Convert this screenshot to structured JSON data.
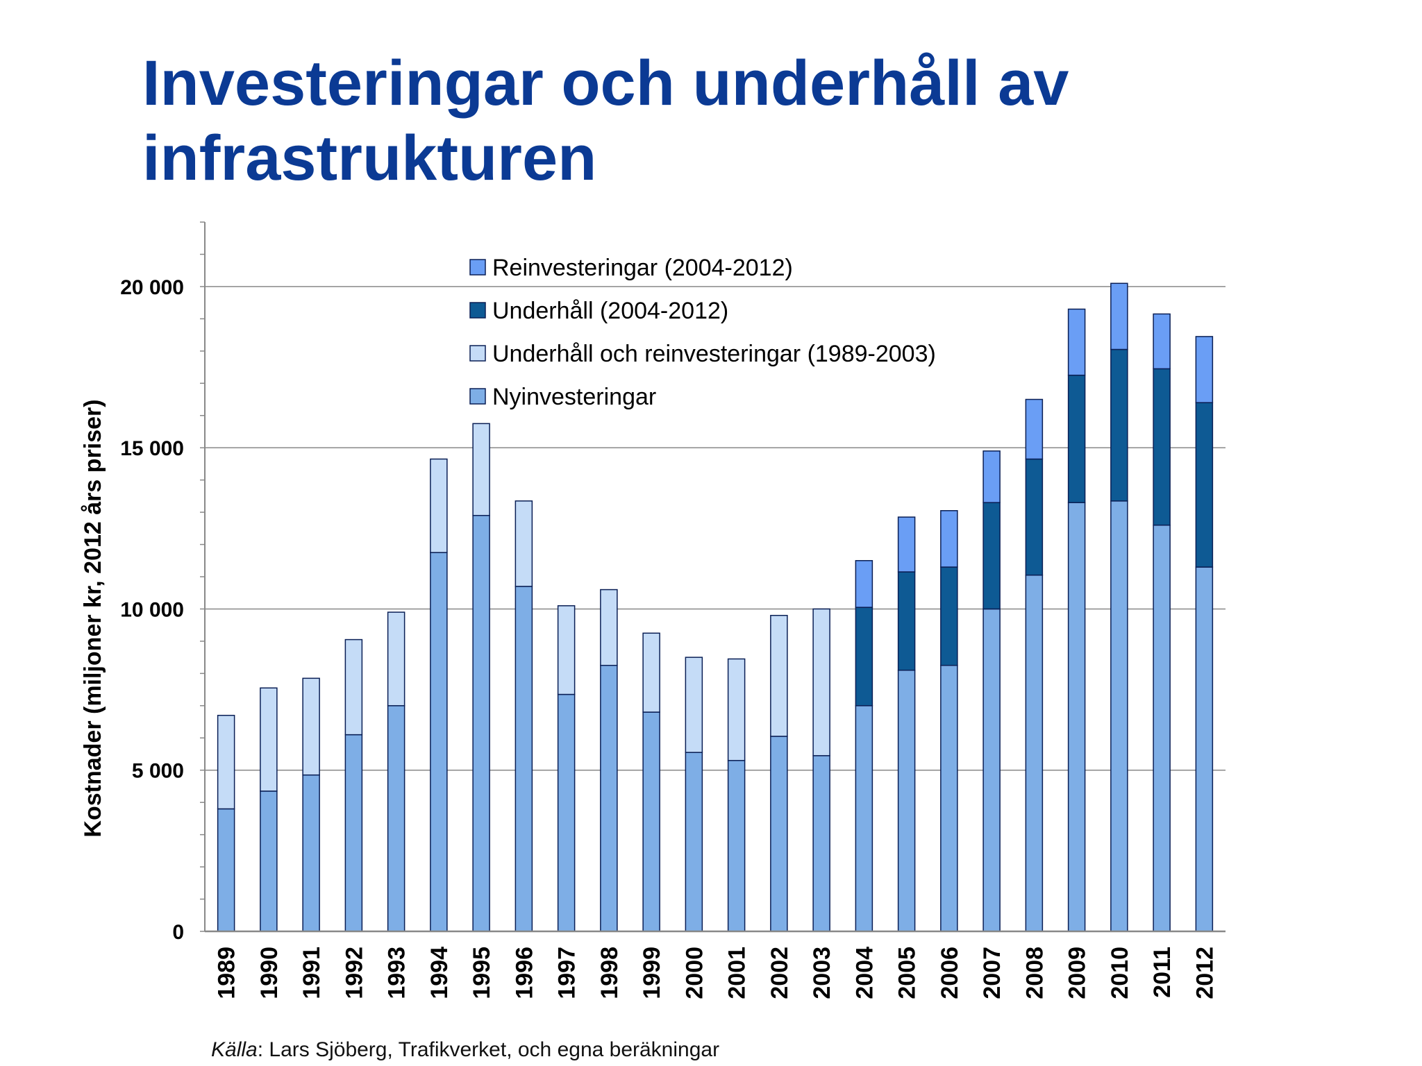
{
  "title_line1": "Investeringar och underhåll av",
  "title_line2": "infrastrukturen",
  "source": {
    "label": "Källa",
    "text": ": Lars Sjöberg, Trafikverket, och egna beräkningar"
  },
  "colors": {
    "title": "#0b3a94",
    "nyinvesteringar": "#7eaee6",
    "underhall_reinv_old": "#c5dcf7",
    "underhall_new": "#0e5a94",
    "reinvesteringar_new": "#6a9ef5",
    "bar_outline": "#0a1f55",
    "grid": "#888888"
  },
  "chart_data": {
    "type": "bar",
    "stacked": true,
    "ylabel": "Kostnader (miljoner kr, 2012 års priser)",
    "xlabel": "",
    "ylim": [
      0,
      22000
    ],
    "yticks": [
      0,
      5000,
      10000,
      15000,
      20000
    ],
    "ytick_labels": [
      "0",
      "5 000",
      "10 000",
      "15 000",
      "20 000"
    ],
    "grid": true,
    "legend_position": "top-center",
    "legend_order": [
      "Reinvesteringar (2004-2012)",
      "Underhåll (2004-2012)",
      "Underhåll och reinvesteringar (1989-2003)",
      "Nyinvesteringar"
    ],
    "categories": [
      "1989",
      "1990",
      "1991",
      "1992",
      "1993",
      "1994",
      "1995",
      "1996",
      "1997",
      "1998",
      "1999",
      "2000",
      "2001",
      "2002",
      "2003",
      "2004",
      "2005",
      "2006",
      "2007",
      "2008",
      "2009",
      "2010",
      "2011",
      "2012"
    ],
    "series": [
      {
        "name": "Nyinvesteringar",
        "color": "#7eaee6",
        "values": [
          3800,
          4350,
          4850,
          6100,
          7000,
          11750,
          12900,
          10700,
          7350,
          8250,
          6800,
          5550,
          5300,
          6050,
          5450,
          7000,
          8100,
          8250,
          10000,
          11050,
          13300,
          13350,
          12600,
          11300
        ]
      },
      {
        "name": "Underhåll och reinvesteringar (1989-2003)",
        "color": "#c5dcf7",
        "values": [
          2900,
          3200,
          3000,
          2950,
          2900,
          2900,
          2850,
          2650,
          2750,
          2350,
          2450,
          2950,
          3150,
          3750,
          4550,
          0,
          0,
          0,
          0,
          0,
          0,
          0,
          0,
          0
        ]
      },
      {
        "name": "Underhåll (2004-2012)",
        "color": "#0e5a94",
        "values": [
          0,
          0,
          0,
          0,
          0,
          0,
          0,
          0,
          0,
          0,
          0,
          0,
          0,
          0,
          0,
          3050,
          3050,
          3050,
          3300,
          3600,
          3950,
          4700,
          4850,
          5100
        ]
      },
      {
        "name": "Reinvesteringar (2004-2012)",
        "color": "#6a9ef5",
        "values": [
          0,
          0,
          0,
          0,
          0,
          0,
          0,
          0,
          0,
          0,
          0,
          0,
          0,
          0,
          0,
          1450,
          1700,
          1750,
          1600,
          1850,
          2050,
          2050,
          1700,
          2050
        ]
      }
    ]
  }
}
